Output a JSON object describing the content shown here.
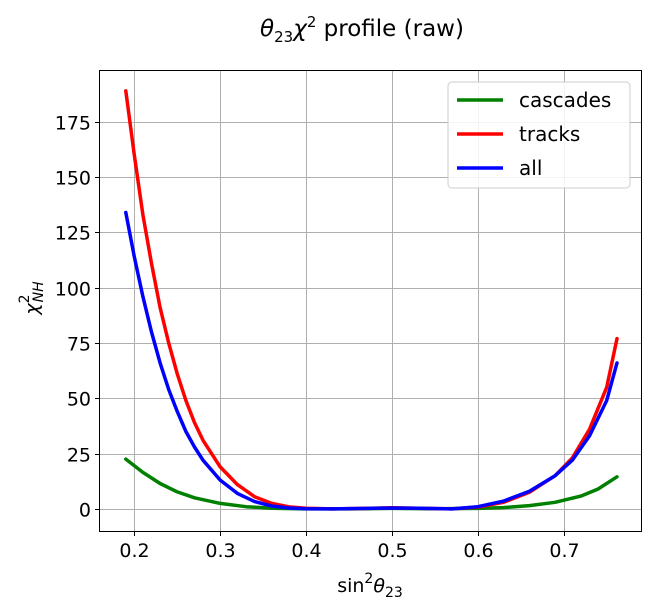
{
  "chart_data": {
    "type": "line",
    "title": "θ23χ2 profile (raw)",
    "title_parts": {
      "theta": "θ",
      "theta_sub": "23",
      "chi": "χ",
      "chi_sup": "2",
      "rest": " profile (raw)"
    },
    "xlabel_parts": {
      "base": "sin",
      "sup": "2",
      "theta": "θ",
      "sub": "23"
    },
    "ylabel_parts": {
      "chi": "χ",
      "sup": "2",
      "sub": "NH"
    },
    "xlim": [
      0.16,
      0.79
    ],
    "ylim": [
      -10,
      198
    ],
    "xticks": [
      0.2,
      0.3,
      0.4,
      0.5,
      0.6,
      0.7
    ],
    "xtick_labels": [
      "0.2",
      "0.3",
      "0.4",
      "0.5",
      "0.6",
      "0.7"
    ],
    "yticks": [
      0,
      25,
      50,
      75,
      100,
      125,
      150,
      175
    ],
    "ytick_labels": [
      "0",
      "25",
      "50",
      "75",
      "100",
      "125",
      "150",
      "175"
    ],
    "grid": true,
    "legend_position": "top-right",
    "series": [
      {
        "name": "cascades",
        "color": "#008000",
        "points": [
          [
            0.19,
            22.5
          ],
          [
            0.21,
            16.5
          ],
          [
            0.23,
            11.5
          ],
          [
            0.25,
            7.7
          ],
          [
            0.27,
            5.0
          ],
          [
            0.3,
            2.5
          ],
          [
            0.33,
            1.0
          ],
          [
            0.36,
            0.3
          ],
          [
            0.4,
            0.0
          ],
          [
            0.45,
            0.0
          ],
          [
            0.5,
            0.2
          ],
          [
            0.55,
            0.1
          ],
          [
            0.6,
            0.2
          ],
          [
            0.63,
            0.6
          ],
          [
            0.66,
            1.5
          ],
          [
            0.69,
            3.0
          ],
          [
            0.72,
            5.8
          ],
          [
            0.74,
            9.0
          ],
          [
            0.762,
            14.5
          ]
        ]
      },
      {
        "name": "tracks",
        "color": "#ff0000",
        "points": [
          [
            0.19,
            189
          ],
          [
            0.2,
            160
          ],
          [
            0.21,
            133
          ],
          [
            0.22,
            111
          ],
          [
            0.23,
            91
          ],
          [
            0.24,
            75
          ],
          [
            0.25,
            61
          ],
          [
            0.26,
            49
          ],
          [
            0.27,
            39
          ],
          [
            0.28,
            31
          ],
          [
            0.3,
            19
          ],
          [
            0.32,
            11
          ],
          [
            0.34,
            5.5
          ],
          [
            0.36,
            2.5
          ],
          [
            0.38,
            0.9
          ],
          [
            0.4,
            0.3
          ],
          [
            0.43,
            0.0
          ],
          [
            0.47,
            0.2
          ],
          [
            0.5,
            0.5
          ],
          [
            0.53,
            0.3
          ],
          [
            0.57,
            0.0
          ],
          [
            0.6,
            0.8
          ],
          [
            0.63,
            3.0
          ],
          [
            0.66,
            7.5
          ],
          [
            0.69,
            15
          ],
          [
            0.71,
            23
          ],
          [
            0.73,
            36
          ],
          [
            0.75,
            55
          ],
          [
            0.762,
            77
          ]
        ]
      },
      {
        "name": "all",
        "color": "#0000ff",
        "points": [
          [
            0.19,
            134
          ],
          [
            0.2,
            114
          ],
          [
            0.21,
            96
          ],
          [
            0.22,
            80
          ],
          [
            0.23,
            66
          ],
          [
            0.24,
            54
          ],
          [
            0.25,
            44
          ],
          [
            0.26,
            35
          ],
          [
            0.27,
            28
          ],
          [
            0.28,
            22
          ],
          [
            0.3,
            13
          ],
          [
            0.32,
            7
          ],
          [
            0.34,
            3.3
          ],
          [
            0.36,
            1.3
          ],
          [
            0.38,
            0.4
          ],
          [
            0.4,
            0.1
          ],
          [
            0.43,
            0.0
          ],
          [
            0.47,
            0.2
          ],
          [
            0.5,
            0.4
          ],
          [
            0.53,
            0.3
          ],
          [
            0.57,
            0.0
          ],
          [
            0.6,
            1.0
          ],
          [
            0.63,
            3.5
          ],
          [
            0.66,
            8.0
          ],
          [
            0.69,
            15
          ],
          [
            0.71,
            22
          ],
          [
            0.73,
            33
          ],
          [
            0.75,
            49
          ],
          [
            0.762,
            66
          ]
        ]
      }
    ]
  }
}
